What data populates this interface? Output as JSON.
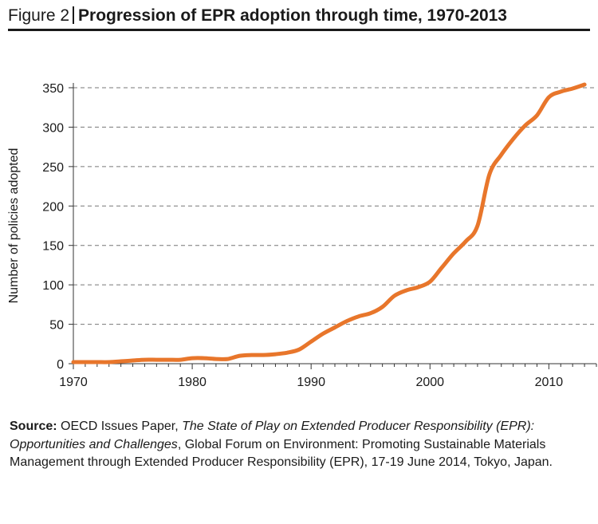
{
  "header": {
    "figure_label": "Figure 2",
    "title": "Progression of EPR adoption through time, 1970-2013"
  },
  "colors": {
    "line": "#e8762b",
    "grid": "#777777",
    "axis": "#333333"
  },
  "chart_data": {
    "type": "line",
    "title": "Progression of EPR adoption through time, 1970-2013",
    "xlabel": "",
    "ylabel": "Number of policies adopted",
    "xlim": [
      1970,
      2014
    ],
    "ylim": [
      0,
      350
    ],
    "x_ticks": [
      1970,
      1980,
      1990,
      2000,
      2010
    ],
    "y_ticks": [
      0,
      50,
      100,
      150,
      200,
      250,
      300,
      350
    ],
    "grid": "horizontal dashed",
    "legend": "none",
    "series": [
      {
        "x": [
          1970,
          1971,
          1972,
          1973,
          1974,
          1975,
          1976,
          1977,
          1978,
          1979,
          1980,
          1981,
          1982,
          1983,
          1984,
          1985,
          1986,
          1987,
          1988,
          1989,
          1990,
          1991,
          1992,
          1993,
          1994,
          1995,
          1996,
          1997,
          1998,
          1999,
          2000,
          2001,
          2002,
          2003,
          2004,
          2005,
          2006,
          2007,
          2008,
          2009,
          2010,
          2011,
          2012,
          2013
        ],
        "y": [
          2,
          2,
          2,
          2,
          3,
          4,
          5,
          5,
          5,
          5,
          7,
          7,
          6,
          6,
          10,
          11,
          11,
          12,
          14,
          18,
          28,
          38,
          46,
          54,
          60,
          64,
          72,
          86,
          93,
          97,
          104,
          122,
          140,
          155,
          175,
          240,
          265,
          285,
          302,
          315,
          338,
          345,
          349,
          354
        ]
      }
    ]
  },
  "source": {
    "label": "Source:",
    "text_1": " OECD Issues Paper, ",
    "report_title": "The State of Play on Extended Producer Responsibility (EPR): Opportunities and Challenges",
    "text_2": ", Global Forum on Environment: Promoting Sustainable Materials Management through Extended Producer Responsibility (EPR), 17-19 June 2014, Tokyo, Japan."
  }
}
